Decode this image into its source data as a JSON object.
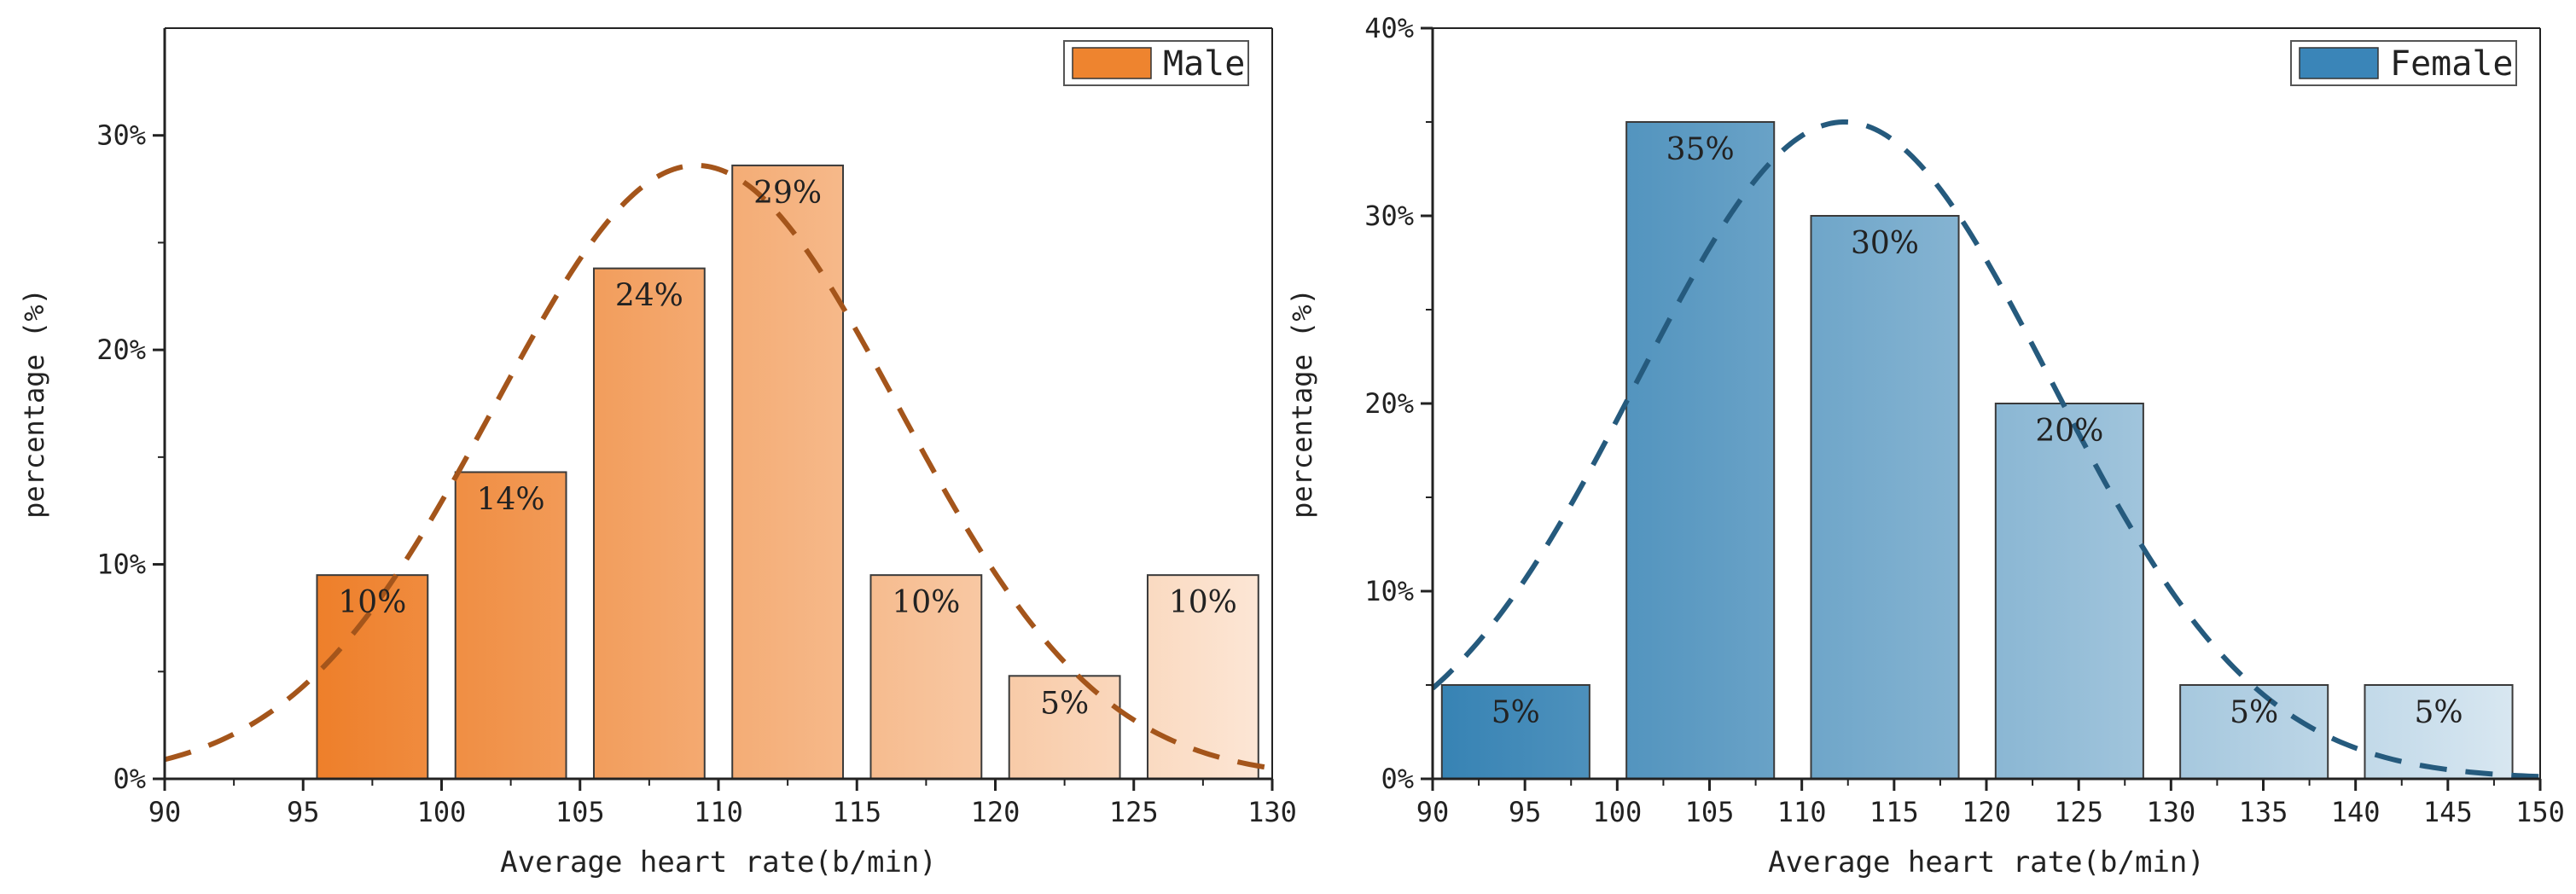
{
  "chart_data": [
    {
      "type": "bar",
      "title": "",
      "xlabel": "Average heart rate(b/min)",
      "ylabel": "percentage (%)",
      "xlim": [
        90,
        130
      ],
      "ylim": [
        0,
        35
      ],
      "x_ticks": [
        90,
        95,
        100,
        105,
        110,
        115,
        120,
        125,
        130
      ],
      "x_tick_labels": [
        "90",
        "95",
        "100",
        "105",
        "110",
        "115",
        "120",
        "125",
        "130"
      ],
      "y_ticks": [
        0,
        10,
        20,
        30
      ],
      "y_tick_labels": [
        "0%",
        "10%",
        "20%",
        "30%"
      ],
      "legend": {
        "label": "Male",
        "position": "top-right"
      },
      "bars": [
        {
          "start": 95.5,
          "end": 99.5,
          "value": 9.5,
          "label": "10%"
        },
        {
          "start": 100.5,
          "end": 104.5,
          "value": 14.3,
          "label": "14%"
        },
        {
          "start": 105.5,
          "end": 109.5,
          "value": 23.8,
          "label": "24%"
        },
        {
          "start": 110.5,
          "end": 114.5,
          "value": 28.6,
          "label": "29%"
        },
        {
          "start": 115.5,
          "end": 119.5,
          "value": 9.5,
          "label": "10%"
        },
        {
          "start": 120.5,
          "end": 124.5,
          "value": 4.8,
          "label": "5%"
        },
        {
          "start": 125.5,
          "end": 129.5,
          "value": 9.5,
          "label": "10%"
        }
      ],
      "fit_curve": {
        "type": "normal",
        "mean": 109.2,
        "sd": 7.3,
        "peak": 28.6
      },
      "colors": {
        "bar_start": "#EE7F2A",
        "bar_end": "#FCE6D5",
        "curve": "#A4551B",
        "legend_swatch": "#EE842F"
      }
    },
    {
      "type": "bar",
      "title": "",
      "xlabel": "Average heart rate(b/min)",
      "ylabel": "percentage (%)",
      "xlim": [
        90,
        150
      ],
      "ylim": [
        0,
        40
      ],
      "x_ticks": [
        90,
        95,
        100,
        105,
        110,
        115,
        120,
        125,
        130,
        135,
        140,
        145,
        150
      ],
      "x_tick_labels": [
        "90",
        "95",
        "100",
        "105",
        "110",
        "115",
        "120",
        "125",
        "130",
        "135",
        "140",
        "145",
        "150"
      ],
      "y_ticks": [
        0,
        10,
        20,
        30,
        40
      ],
      "y_tick_labels": [
        "0%",
        "10%",
        "20%",
        "30%",
        "40%"
      ],
      "legend": {
        "label": "Female",
        "position": "top-right"
      },
      "bars": [
        {
          "start": 90.5,
          "end": 98.5,
          "value": 5,
          "label": "5%"
        },
        {
          "start": 100.5,
          "end": 108.5,
          "value": 35,
          "label": "35%"
        },
        {
          "start": 110.5,
          "end": 118.5,
          "value": 30,
          "label": "30%"
        },
        {
          "start": 120.5,
          "end": 128.5,
          "value": 20,
          "label": "20%"
        },
        {
          "start": 130.5,
          "end": 138.5,
          "value": 5,
          "label": "5%"
        },
        {
          "start": 140.5,
          "end": 148.5,
          "value": 5,
          "label": "5%"
        }
      ],
      "fit_curve": {
        "type": "normal",
        "mean": 112.3,
        "sd": 11.2,
        "peak": 35
      },
      "colors": {
        "bar_start": "#3783B4",
        "bar_end": "#D8E7F1",
        "curve": "#255A7D",
        "legend_swatch": "#3A85B8"
      }
    }
  ]
}
